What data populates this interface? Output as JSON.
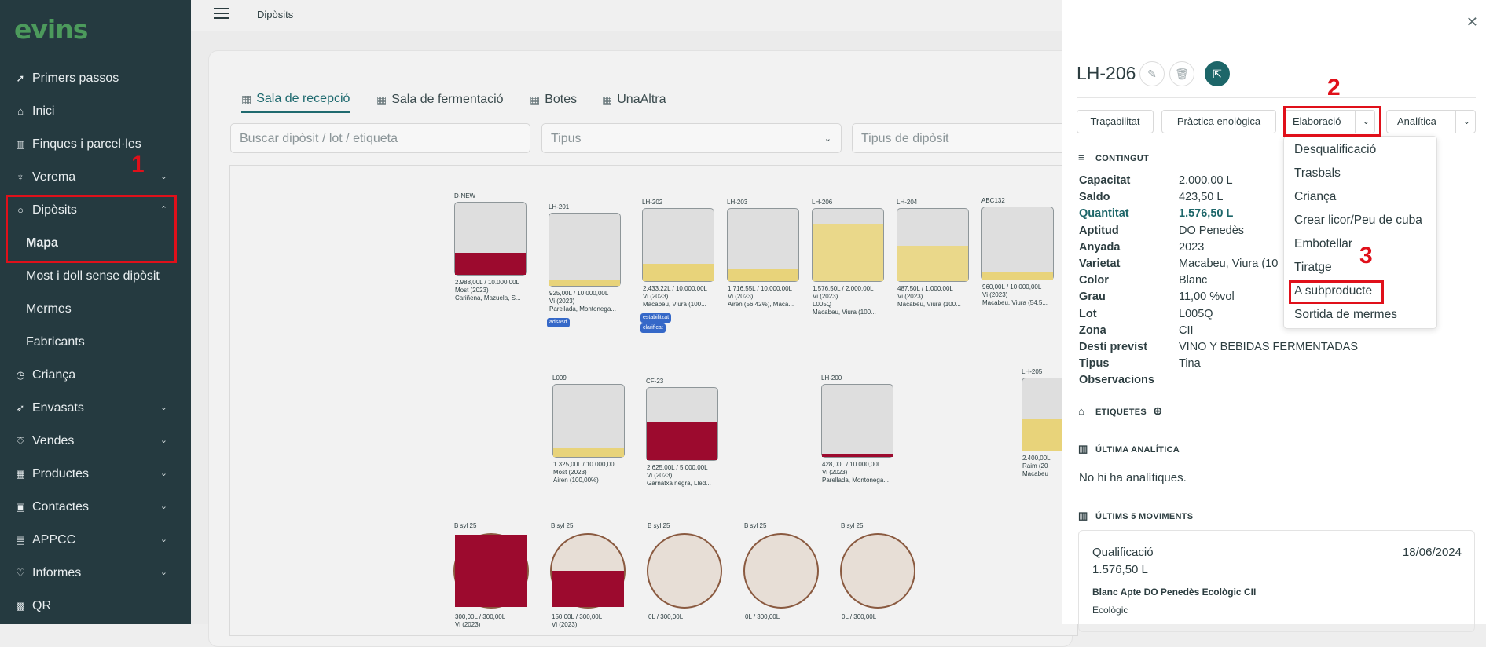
{
  "app": {
    "logo": "evins"
  },
  "sidebar": {
    "items": [
      {
        "label": "Primers passos",
        "icon": "rocket-icon",
        "glyph": "➚"
      },
      {
        "label": "Inici",
        "icon": "home-icon",
        "glyph": "⌂"
      },
      {
        "label": "Finques i parcel·les",
        "icon": "map-icon",
        "glyph": "▥"
      },
      {
        "label": "Verema",
        "icon": "grapes-icon",
        "glyph": "♆"
      },
      {
        "label": "Dipòsits",
        "icon": "circle-icon",
        "glyph": "○"
      },
      {
        "label": "Mapa",
        "icon": "",
        "glyph": ""
      },
      {
        "label": "Most i doll sense dipòsit",
        "icon": "",
        "glyph": ""
      },
      {
        "label": "Mermes",
        "icon": "",
        "glyph": ""
      },
      {
        "label": "Fabricants",
        "icon": "",
        "glyph": ""
      },
      {
        "label": "Criança",
        "icon": "clock-icon",
        "glyph": "◷"
      },
      {
        "label": "Envasats",
        "icon": "bottle-icon",
        "glyph": "➶"
      },
      {
        "label": "Vendes",
        "icon": "basket-icon",
        "glyph": "⛋"
      },
      {
        "label": "Productes",
        "icon": "grid-icon",
        "glyph": "▦"
      },
      {
        "label": "Contactes",
        "icon": "contacts-icon",
        "glyph": "▣"
      },
      {
        "label": "APPCC",
        "icon": "clipboard-icon",
        "glyph": "▤"
      },
      {
        "label": "Informes",
        "icon": "shield-icon",
        "glyph": "♡"
      },
      {
        "label": "QR",
        "icon": "qr-icon",
        "glyph": "▩"
      }
    ]
  },
  "header": {
    "breadcrumb": "Dipòsits"
  },
  "tabs": [
    {
      "label": "Sala de recepció"
    },
    {
      "label": "Sala de fermentació"
    },
    {
      "label": "Botes"
    },
    {
      "label": "UnaAltra"
    }
  ],
  "filters": {
    "search_placeholder": "Buscar dipòsit / lot / etiqueta",
    "type_placeholder": "Tipus",
    "tank_type_placeholder": "Tipus de dipòsit"
  },
  "tanks": [
    {
      "name": "D-NEW",
      "level": 0.3,
      "color": "#9c0a2e",
      "lines": [
        "2.988,00L / 10.000,00L",
        "Most (2023)",
        "Cariñena, Mazuela, S..."
      ],
      "chips": []
    },
    {
      "name": "LH-201",
      "level": 0.09,
      "color": "#e8d37a",
      "lines": [
        "925,00L / 10.000,00L",
        "Vi (2023)",
        "Parellada, Montonega..."
      ],
      "chips": [
        "adsasd"
      ]
    },
    {
      "name": "LH-202",
      "level": 0.24,
      "color": "#e8d37a",
      "lines": [
        "2.433,22L / 10.000,00L",
        "Vi (2023)",
        "Macabeu, Viura (100..."
      ],
      "chips": [
        "estabilitzat",
        "clarificat"
      ]
    },
    {
      "name": "LH-203",
      "level": 0.17,
      "color": "#e8d37a",
      "lines": [
        "1.716,55L / 10.000,00L",
        "Vi (2023)",
        "Airen (56.42%), Maca..."
      ],
      "chips": []
    },
    {
      "name": "LH-206",
      "level": 0.79,
      "color": "#ead88a",
      "lines": [
        "1.576,50L / 2.000,00L",
        "Vi (2023)",
        "L005Q",
        "Macabeu, Viura (100..."
      ],
      "chips": []
    },
    {
      "name": "LH-204",
      "level": 0.49,
      "color": "#ead88a",
      "lines": [
        "487,50L / 1.000,00L",
        "Vi (2023)",
        "Macabeu, Viura (100..."
      ],
      "chips": []
    },
    {
      "name": "ABC132",
      "level": 0.1,
      "color": "#e8d37a",
      "lines": [
        "960,00L / 10.000,00L",
        "Vi (2023)",
        "Macabeu, Viura (54.5..."
      ],
      "chips": []
    },
    {
      "name": "L009",
      "level": 0.13,
      "color": "#e8d37a",
      "lines": [
        "1.325,00L / 10.000,00L",
        "Most (2023)",
        "Airen (100,00%)"
      ],
      "chips": []
    },
    {
      "name": "CF-23",
      "level": 0.53,
      "color": "#9c0a2e",
      "lines": [
        "2.625,00L / 5.000,00L",
        "Vi (2023)",
        "Garnatxa negra, Lled..."
      ],
      "chips": []
    },
    {
      "name": "LH-200",
      "level": 0.04,
      "color": "#9c0a2e",
      "lines": [
        "428,00L / 10.000,00L",
        "Vi (2023)",
        "Parellada, Montonega..."
      ],
      "chips": []
    },
    {
      "name": "LH-205",
      "level": 0.45,
      "color": "#e8d37a",
      "lines": [
        "2.400,00L",
        "Raim (20",
        "Macabeu"
      ],
      "chips": []
    }
  ],
  "barrels": [
    {
      "name": "B syl 25",
      "level": 1.0,
      "lines": [
        "300,00L / 300,00L",
        "Vi (2023)"
      ]
    },
    {
      "name": "B syl 25",
      "level": 0.5,
      "lines": [
        "150,00L / 300,00L",
        "Vi (2023)"
      ]
    },
    {
      "name": "B syl 25",
      "level": 0,
      "lines": [
        "0L / 300,00L"
      ]
    },
    {
      "name": "B syl 25",
      "level": 0,
      "lines": [
        "0L / 300,00L"
      ]
    },
    {
      "name": "B syl 25",
      "level": 0,
      "lines": [
        "0L / 300,00L"
      ]
    }
  ],
  "panel": {
    "title": "LH-206",
    "buttons": [
      "Traçabilitat",
      "Pràctica enològica",
      "Elaboració",
      "Analítica"
    ],
    "contingut_title": "CONTINGUT",
    "fields": [
      {
        "k": "Capacitat",
        "v": "2.000,00 L"
      },
      {
        "k": "Saldo",
        "v": "423,50 L"
      },
      {
        "k": "Quantitat",
        "v": "1.576,50 L"
      },
      {
        "k": "Aptitud",
        "v": "DO Penedès"
      },
      {
        "k": "Anyada",
        "v": "2023"
      },
      {
        "k": "Varietat",
        "v": "Macabeu, Viura (10"
      },
      {
        "k": "Color",
        "v": "Blanc"
      },
      {
        "k": "Grau",
        "v": "11,00 %vol"
      },
      {
        "k": "Lot",
        "v": "L005Q"
      },
      {
        "k": "Zona",
        "v": "CII"
      },
      {
        "k": "Destí previst",
        "v": "VINO Y BEBIDAS FERMENTADAS"
      },
      {
        "k": "Tipus",
        "v": "Tina"
      },
      {
        "k": "Observacions",
        "v": ""
      }
    ],
    "etiquetes_title": "ETIQUETES",
    "analitica_title": "ÚLTIMA ANALÍTICA",
    "no_analitiques": "No hi ha analítiques.",
    "moviments_title": "ÚLTIMS 5 MOVIMENTS",
    "movement": {
      "type": "Qualificació",
      "date": "18/06/2024",
      "qty": "1.576,50 L",
      "status": "Blanc Apte DO Penedès Ecològic CII",
      "eco": "Ecològic"
    }
  },
  "dropdown": {
    "items": [
      "Desqualificació",
      "Trasbals",
      "Criança",
      "Crear licor/Peu de cuba",
      "Embotellar",
      "Tiratge",
      "A subproducte",
      "Sortida de mermes"
    ]
  },
  "annotations": {
    "n1": "1",
    "n2": "2",
    "n3": "3"
  },
  "colors": {
    "sidebar": "#253a40",
    "accent": "#1d6669",
    "annotation": "#e0101a",
    "wine_red": "#9c0a2e",
    "wine_white": "#e8d37a"
  }
}
